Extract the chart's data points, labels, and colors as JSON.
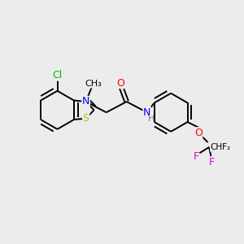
{
  "background_color": "#ececec",
  "bond_color": "#000000",
  "bond_width": 1.4,
  "atom_colors": {
    "Cl": "#00bb00",
    "S": "#bbbb00",
    "N": "#0000ff",
    "O": "#ff0000",
    "F": "#dd00dd",
    "C": "#000000",
    "H": "#777777"
  },
  "font_size": 8.5
}
